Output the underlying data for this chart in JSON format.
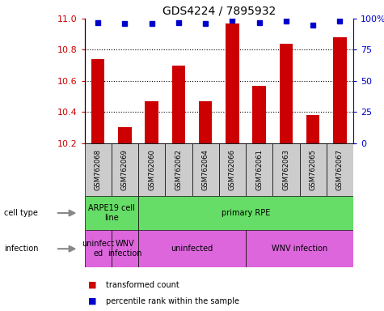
{
  "title": "GDS4224 / 7895932",
  "samples": [
    "GSM762068",
    "GSM762069",
    "GSM762060",
    "GSM762062",
    "GSM762064",
    "GSM762066",
    "GSM762061",
    "GSM762063",
    "GSM762065",
    "GSM762067"
  ],
  "transformed_counts": [
    10.74,
    10.3,
    10.47,
    10.7,
    10.47,
    10.97,
    10.57,
    10.84,
    10.38,
    10.88
  ],
  "percentile_ranks": [
    97,
    96,
    96,
    97,
    96,
    99,
    97,
    98,
    95,
    98
  ],
  "ylim_left": [
    10.2,
    11.0
  ],
  "ylim_right": [
    0,
    100
  ],
  "yticks_left": [
    10.2,
    10.4,
    10.6,
    10.8,
    11.0
  ],
  "yticks_right": [
    0,
    25,
    50,
    75,
    100
  ],
  "ytick_labels_right": [
    "0",
    "25",
    "50",
    "75",
    "100%"
  ],
  "bar_color": "#cc0000",
  "dot_color": "#0000cc",
  "cell_type_row": [
    {
      "label": "ARPE19 cell\nline",
      "start": 0,
      "end": 2,
      "color": "#66dd66"
    },
    {
      "label": "primary RPE",
      "start": 2,
      "end": 10,
      "color": "#66dd66"
    }
  ],
  "infection_row": [
    {
      "label": "uninfect\ned",
      "start": 0,
      "end": 1,
      "color": "#dd66dd"
    },
    {
      "label": "WNV\ninfection",
      "start": 1,
      "end": 2,
      "color": "#dd66dd"
    },
    {
      "label": "uninfected",
      "start": 2,
      "end": 6,
      "color": "#dd66dd"
    },
    {
      "label": "WNV infection",
      "start": 6,
      "end": 10,
      "color": "#dd66dd"
    }
  ],
  "grid_lines": [
    10.4,
    10.6,
    10.8
  ],
  "bar_width": 0.5,
  "sample_label_fontsize": 6,
  "row_label_fontsize": 7,
  "axis_fontsize": 8,
  "title_fontsize": 10,
  "legend_items": [
    {
      "label": "transformed count",
      "color": "#cc0000"
    },
    {
      "label": "percentile rank within the sample",
      "color": "#0000cc"
    }
  ]
}
